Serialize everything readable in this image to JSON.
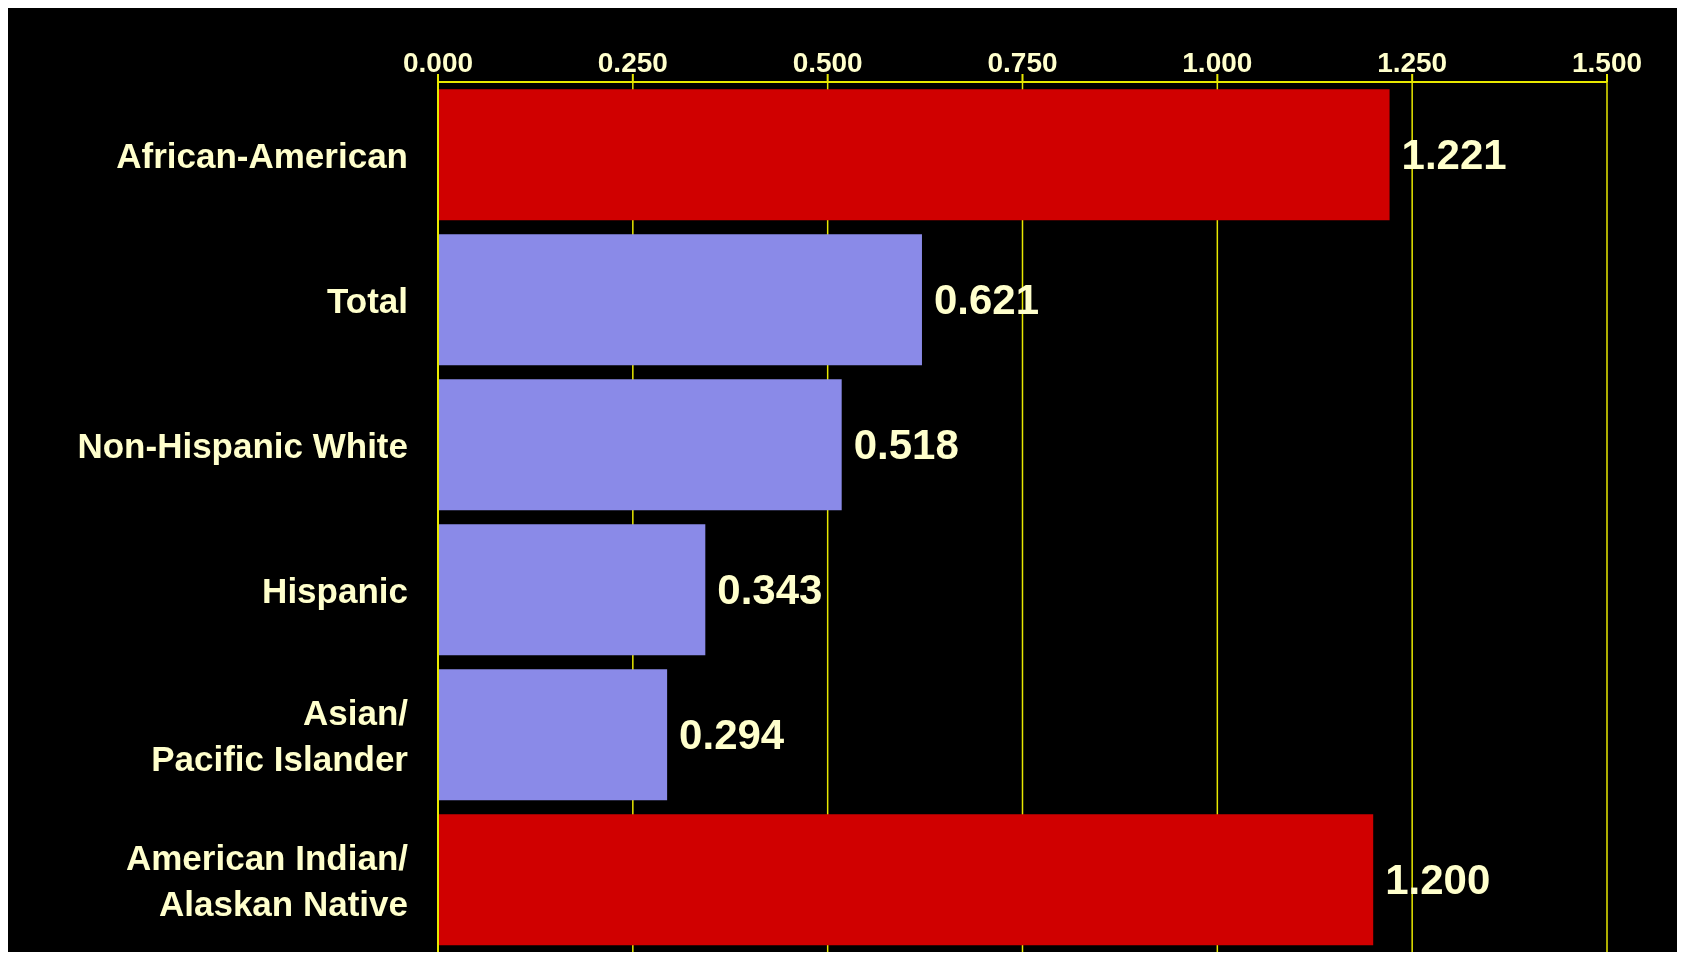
{
  "chart_data": {
    "type": "bar",
    "orientation": "horizontal",
    "categories": [
      "African-American",
      "Total",
      "Non-Hispanic White",
      "Hispanic",
      "Asian/\nPacific Islander",
      "American Indian/\nAlaskan Native"
    ],
    "values": [
      1.221,
      0.621,
      0.518,
      0.343,
      0.294,
      1.2
    ],
    "colors": [
      "#d00000",
      "#8a8ae8",
      "#8a8ae8",
      "#8a8ae8",
      "#8a8ae8",
      "#d00000"
    ],
    "value_labels": [
      "1.221",
      "0.621",
      "0.518",
      "0.343",
      "0.294",
      "1.200"
    ],
    "xlim": [
      0,
      1.5
    ],
    "xticks": [
      {
        "value": 0,
        "label": "0.000"
      },
      {
        "value": 0.25,
        "label": "0.250"
      },
      {
        "value": 0.5,
        "label": "0.500"
      },
      {
        "value": 0.75,
        "label": "0.750"
      },
      {
        "value": 1,
        "label": "1.000"
      },
      {
        "value": 1.25,
        "label": "1.250"
      },
      {
        "value": 1.5,
        "label": "1.500"
      }
    ],
    "grid": "x"
  }
}
